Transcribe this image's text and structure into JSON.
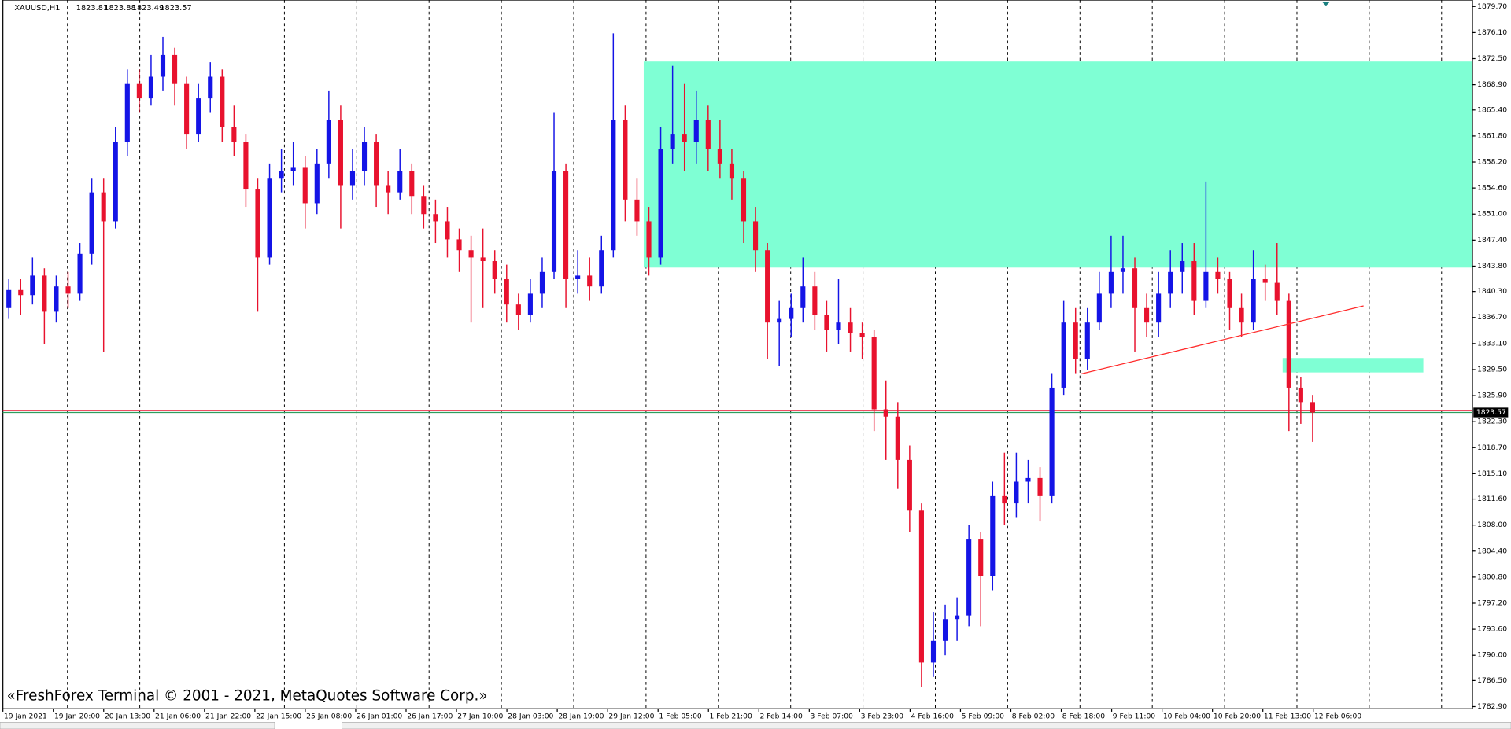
{
  "chart_data": {
    "type": "candlestick",
    "symbol": "XAUUSD,H1",
    "header_ohlc": [
      1823.81,
      1823.88,
      1823.49,
      1823.57
    ],
    "watermark": "«FreshForex Terminal © 2001 - 2021, MetaQuotes Software Corp.»",
    "up_color": "#1414e6",
    "down_color": "#e8122e",
    "ylim": [
      1782.6,
      1880.6
    ],
    "yticks": [
      {
        "value": 1879.7,
        "label": "1879.70"
      },
      {
        "value": 1876.1,
        "label": "1876.10"
      },
      {
        "value": 1872.5,
        "label": "1872.50"
      },
      {
        "value": 1868.9,
        "label": "1868.90"
      },
      {
        "value": 1865.4,
        "label": "1865.40"
      },
      {
        "value": 1861.8,
        "label": "1861.80"
      },
      {
        "value": 1858.2,
        "label": "1858.20"
      },
      {
        "value": 1854.6,
        "label": "1854.60"
      },
      {
        "value": 1851,
        "label": "1851.00"
      },
      {
        "value": 1847.4,
        "label": "1847.40"
      },
      {
        "value": 1843.8,
        "label": "1843.80"
      },
      {
        "value": 1840.3,
        "label": "1840.30"
      },
      {
        "value": 1836.7,
        "label": "1836.70"
      },
      {
        "value": 1833.1,
        "label": "1833.10"
      },
      {
        "value": 1829.5,
        "label": "1829.50"
      },
      {
        "value": 1825.9,
        "label": "1825.90"
      },
      {
        "value": 1822.3,
        "label": "1822.30"
      },
      {
        "value": 1818.7,
        "label": "1818.70"
      },
      {
        "value": 1815.1,
        "label": "1815.10"
      },
      {
        "value": 1811.6,
        "label": "1811.60"
      },
      {
        "value": 1808,
        "label": "1808.00"
      },
      {
        "value": 1804.4,
        "label": "1804.40"
      },
      {
        "value": 1800.8,
        "label": "1800.80"
      },
      {
        "value": 1797.2,
        "label": "1797.20"
      },
      {
        "value": 1793.6,
        "label": "1793.60"
      },
      {
        "value": 1790,
        "label": "1790.00"
      },
      {
        "value": 1786.5,
        "label": "1786.50"
      },
      {
        "value": 1782.9,
        "label": "1782.90"
      }
    ],
    "current_price": 1823.57,
    "price_lines": [
      {
        "value": 1823.85,
        "color": "#e8122e"
      },
      {
        "value": 1823.57,
        "color": "#2e9e5e"
      }
    ],
    "zones": [
      {
        "from": 1843.6,
        "to": 1872.1,
        "color": "#7fffd4"
      },
      {
        "from": 1829.1,
        "to": 1831.1,
        "color": "#7fffd4"
      }
    ],
    "trendline": {
      "from": 1828.9,
      "to": 1838.3,
      "color": "#ff2a2a"
    },
    "x_labels": [
      "19 Jan 2021",
      "19 Jan 20:00",
      "20 Jan 13:00",
      "21 Jan 06:00",
      "21 Jan 22:00",
      "22 Jan 15:00",
      "25 Jan 08:00",
      "26 Jan 01:00",
      "26 Jan 17:00",
      "27 Jan 10:00",
      "28 Jan 03:00",
      "28 Jan 19:00",
      "29 Jan 12:00",
      "1 Feb 05:00",
      "1 Feb 21:00",
      "2 Feb 14:00",
      "3 Feb 07:00",
      "3 Feb 23:00",
      "4 Feb 16:00",
      "5 Feb 09:00",
      "8 Feb 02:00",
      "8 Feb 18:00",
      "9 Feb 11:00",
      "10 Feb 04:00",
      "10 Feb 20:00",
      "11 Feb 13:00",
      "12 Feb 06:00"
    ],
    "candles": [
      [
        1838,
        1842,
        1836.5,
        1840.5
      ],
      [
        1840.5,
        1842,
        1837,
        1839.8
      ],
      [
        1839.8,
        1845,
        1838.5,
        1842.5
      ],
      [
        1842.5,
        1843.5,
        1833,
        1837.5
      ],
      [
        1837.5,
        1842.5,
        1836,
        1841
      ],
      [
        1841,
        1843,
        1838,
        1840
      ],
      [
        1840,
        1847,
        1839,
        1845.5
      ],
      [
        1845.5,
        1856,
        1844,
        1854
      ],
      [
        1854,
        1856,
        1832,
        1850
      ],
      [
        1850,
        1863,
        1849,
        1861
      ],
      [
        1861,
        1871,
        1859,
        1869
      ],
      [
        1869,
        1871,
        1865,
        1867
      ],
      [
        1867,
        1873,
        1866,
        1870
      ],
      [
        1870,
        1875.5,
        1868,
        1873
      ],
      [
        1873,
        1874,
        1866,
        1869
      ],
      [
        1869,
        1870,
        1860,
        1862
      ],
      [
        1862,
        1869,
        1861,
        1867
      ],
      [
        1867,
        1872,
        1865,
        1870
      ],
      [
        1870,
        1871,
        1861,
        1863
      ],
      [
        1863,
        1866,
        1859,
        1861
      ],
      [
        1861,
        1862,
        1852,
        1854.5
      ],
      [
        1854.5,
        1856,
        1837.5,
        1845
      ],
      [
        1845,
        1858,
        1844,
        1856
      ],
      [
        1856,
        1860,
        1854,
        1857
      ],
      [
        1857,
        1861,
        1855,
        1857.5
      ],
      [
        1857.5,
        1859,
        1849,
        1852.5
      ],
      [
        1852.5,
        1860,
        1851,
        1858
      ],
      [
        1858,
        1868,
        1856,
        1864
      ],
      [
        1864,
        1866,
        1849,
        1855
      ],
      [
        1855,
        1860,
        1853,
        1857
      ],
      [
        1857,
        1863,
        1855,
        1861
      ],
      [
        1861,
        1862,
        1852,
        1855
      ],
      [
        1855,
        1857,
        1851,
        1854
      ],
      [
        1854,
        1860,
        1853,
        1857
      ],
      [
        1857,
        1858,
        1851,
        1853.5
      ],
      [
        1853.5,
        1855,
        1849,
        1851
      ],
      [
        1851,
        1853,
        1847,
        1850
      ],
      [
        1850,
        1852,
        1845,
        1847.5
      ],
      [
        1847.5,
        1849,
        1843,
        1846
      ],
      [
        1846,
        1848,
        1836,
        1845
      ],
      [
        1845,
        1849,
        1838,
        1844.5
      ],
      [
        1844.5,
        1846,
        1840,
        1842
      ],
      [
        1842,
        1844,
        1836,
        1838.5
      ],
      [
        1838.5,
        1840,
        1835,
        1837
      ],
      [
        1837,
        1842,
        1836,
        1840
      ],
      [
        1840,
        1845,
        1838,
        1843
      ],
      [
        1843,
        1865,
        1842,
        1857
      ],
      [
        1857,
        1858,
        1838,
        1842
      ],
      [
        1842,
        1846,
        1840,
        1842.5
      ],
      [
        1842.5,
        1845,
        1839,
        1841
      ],
      [
        1841,
        1848,
        1840,
        1846
      ],
      [
        1846,
        1876,
        1845,
        1864
      ],
      [
        1864,
        1866,
        1850,
        1853
      ],
      [
        1853,
        1856,
        1848,
        1850
      ],
      [
        1850,
        1852,
        1842.5,
        1845
      ],
      [
        1845,
        1863,
        1844,
        1860
      ],
      [
        1860,
        1871.5,
        1858,
        1862
      ],
      [
        1862,
        1869,
        1857,
        1861
      ],
      [
        1861,
        1868,
        1858,
        1864
      ],
      [
        1864,
        1866,
        1857,
        1860
      ],
      [
        1860,
        1864,
        1856,
        1858
      ],
      [
        1858,
        1860,
        1853,
        1856
      ],
      [
        1856,
        1857,
        1847,
        1850
      ],
      [
        1850,
        1852,
        1843,
        1846
      ],
      [
        1846,
        1847,
        1831,
        1836
      ],
      [
        1836,
        1839,
        1830,
        1836.5
      ],
      [
        1836.5,
        1840,
        1834,
        1838
      ],
      [
        1838,
        1845,
        1836,
        1841
      ],
      [
        1841,
        1843,
        1835,
        1837
      ],
      [
        1837,
        1839,
        1832,
        1835
      ],
      [
        1835,
        1842,
        1833,
        1836
      ],
      [
        1836,
        1838,
        1832,
        1834.5
      ],
      [
        1834.5,
        1836,
        1831,
        1834
      ],
      [
        1834,
        1835,
        1821,
        1824
      ],
      [
        1824,
        1828,
        1817,
        1823
      ],
      [
        1823,
        1825,
        1813,
        1817
      ],
      [
        1817,
        1819,
        1807,
        1810
      ],
      [
        1810,
        1811,
        1785.6,
        1789
      ],
      [
        1789,
        1796,
        1787,
        1792
      ],
      [
        1792,
        1797,
        1790,
        1795
      ],
      [
        1795,
        1798,
        1792,
        1795.5
      ],
      [
        1795.5,
        1808,
        1794,
        1806
      ],
      [
        1806,
        1807,
        1794,
        1801
      ],
      [
        1801,
        1814,
        1799,
        1812
      ],
      [
        1812,
        1818,
        1808,
        1811
      ],
      [
        1811,
        1818,
        1809,
        1814
      ],
      [
        1814,
        1817,
        1811,
        1814.5
      ],
      [
        1814.5,
        1816,
        1808.5,
        1812
      ],
      [
        1812,
        1829,
        1811,
        1827
      ],
      [
        1827,
        1839,
        1826,
        1836
      ],
      [
        1836,
        1838,
        1829,
        1831
      ],
      [
        1831,
        1838,
        1829.5,
        1836
      ],
      [
        1836,
        1843,
        1835,
        1840
      ],
      [
        1840,
        1848,
        1838,
        1843
      ],
      [
        1843,
        1848,
        1840,
        1843.5
      ],
      [
        1843.5,
        1845,
        1832,
        1838
      ],
      [
        1838,
        1840,
        1834,
        1836
      ],
      [
        1836,
        1843,
        1834,
        1840
      ],
      [
        1840,
        1846,
        1838,
        1843
      ],
      [
        1843,
        1847,
        1840,
        1844.5
      ],
      [
        1844.5,
        1847,
        1837,
        1839
      ],
      [
        1839,
        1855.5,
        1838,
        1843
      ],
      [
        1843,
        1845,
        1840,
        1842
      ],
      [
        1842,
        1843,
        1835,
        1838
      ],
      [
        1838,
        1840,
        1834,
        1836
      ],
      [
        1836,
        1846,
        1835,
        1842
      ],
      [
        1842,
        1844,
        1839,
        1841.5
      ],
      [
        1841.5,
        1847,
        1837,
        1839
      ],
      [
        1839,
        1840,
        1821,
        1827
      ],
      [
        1827,
        1828.5,
        1822,
        1825
      ],
      [
        1825,
        1826,
        1819.5,
        1823.57
      ]
    ]
  }
}
